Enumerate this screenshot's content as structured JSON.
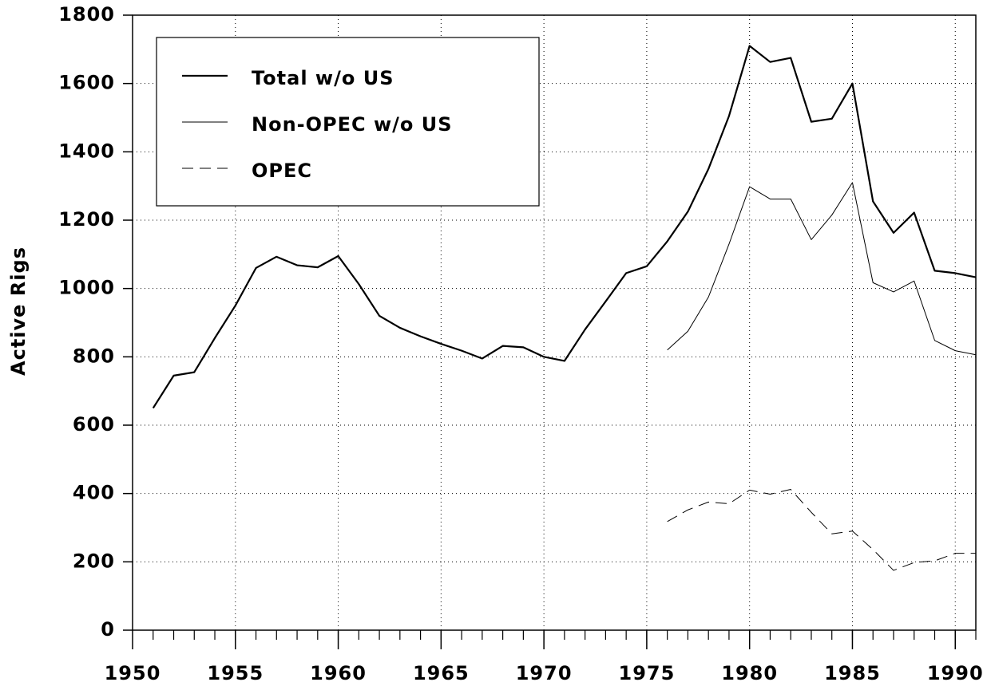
{
  "chart_data": {
    "type": "line",
    "ylabel": "Active Rigs",
    "x": [
      1951,
      1952,
      1953,
      1954,
      1955,
      1956,
      1957,
      1958,
      1959,
      1960,
      1961,
      1962,
      1963,
      1964,
      1965,
      1966,
      1967,
      1968,
      1969,
      1970,
      1971,
      1972,
      1973,
      1974,
      1975,
      1976,
      1977,
      1978,
      1979,
      1980,
      1981,
      1982,
      1983,
      1984,
      1985,
      1986,
      1987,
      1988,
      1989,
      1990,
      1991
    ],
    "series": [
      {
        "name": "Total w/o US",
        "color": "#000000",
        "style": "solid-thick",
        "values": [
          650,
          745,
          755,
          855,
          950,
          1060,
          1093,
          1068,
          1062,
          1095,
          1013,
          920,
          885,
          860,
          838,
          818,
          795,
          832,
          828,
          800,
          788,
          880,
          962,
          1045,
          1065,
          1138,
          1225,
          1350,
          1505,
          1710,
          1663,
          1675,
          1488,
          1497,
          1600,
          1255,
          1163,
          1222,
          1052,
          1045,
          1033
        ]
      },
      {
        "name": "Non-OPEC w/o US",
        "color": "#000000",
        "style": "solid-thin",
        "values": [
          null,
          null,
          null,
          null,
          null,
          null,
          null,
          null,
          null,
          null,
          null,
          null,
          null,
          null,
          null,
          null,
          null,
          null,
          null,
          null,
          null,
          null,
          null,
          null,
          null,
          820,
          875,
          975,
          1130,
          1298,
          1262,
          1262,
          1143,
          1215,
          1310,
          1017,
          990,
          1022,
          848,
          818,
          806
        ]
      },
      {
        "name": "OPEC",
        "color": "#000000",
        "style": "dashed",
        "values": [
          null,
          null,
          null,
          null,
          null,
          null,
          null,
          null,
          null,
          null,
          null,
          null,
          null,
          null,
          null,
          null,
          null,
          null,
          null,
          null,
          null,
          null,
          null,
          null,
          null,
          318,
          352,
          375,
          370,
          410,
          398,
          412,
          345,
          282,
          290,
          236,
          175,
          198,
          203,
          225,
          225
        ]
      }
    ],
    "xlim": [
      1950,
      1991
    ],
    "xticks": [
      1950,
      1955,
      1960,
      1965,
      1970,
      1975,
      1980,
      1985,
      1990
    ],
    "ylim": [
      0,
      1800
    ],
    "yticks": [
      0,
      200,
      400,
      600,
      800,
      1000,
      1200,
      1400,
      1600,
      1800
    ],
    "grid": true,
    "legend": "upper left"
  }
}
